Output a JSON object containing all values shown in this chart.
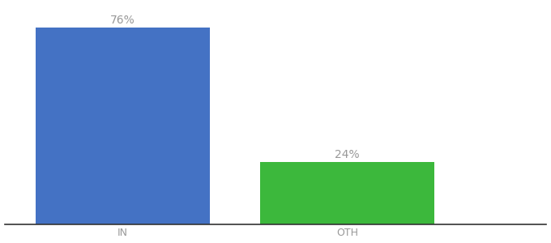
{
  "categories": [
    "IN",
    "OTH"
  ],
  "values": [
    76,
    24
  ],
  "bar_colors": [
    "#4472c4",
    "#3cb83c"
  ],
  "label_texts": [
    "76%",
    "24%"
  ],
  "background_color": "#ffffff",
  "ylim": [
    0,
    85
  ],
  "bar_width": 0.28,
  "label_fontsize": 10,
  "tick_fontsize": 9,
  "label_color": "#999999",
  "spine_color": "#333333",
  "x_positions": [
    0.22,
    0.58
  ]
}
